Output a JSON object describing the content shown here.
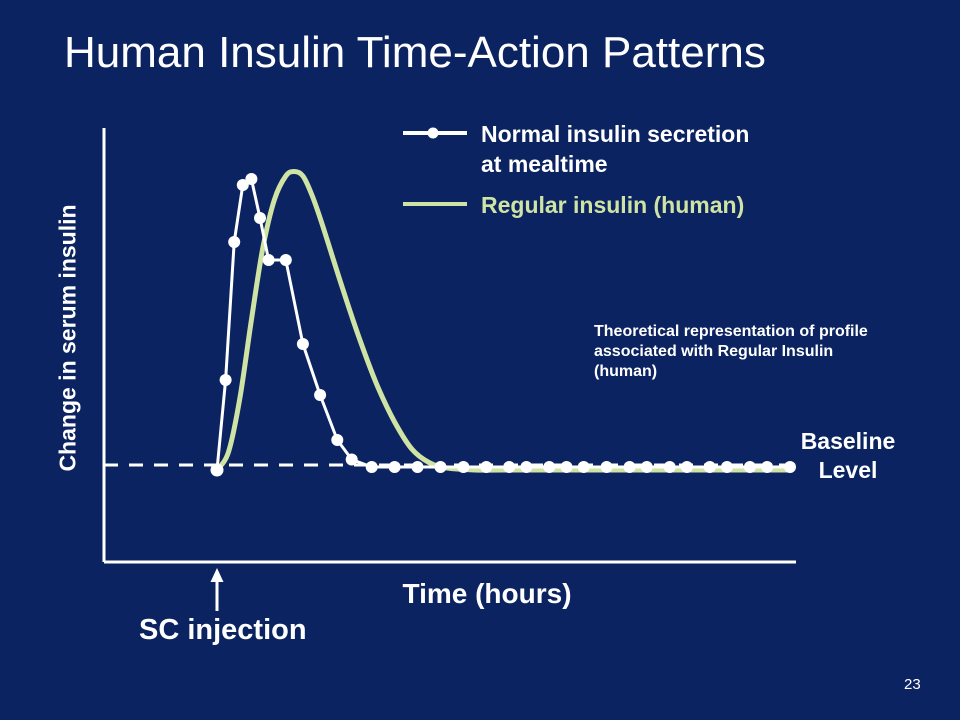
{
  "slide": {
    "title": "Human Insulin Time-Action Patterns",
    "page_number": "23"
  },
  "colors": {
    "background": "#0b2461",
    "normal_secretion": "#ffffff",
    "regular_insulin": "#cfe3a4",
    "text": "#ffffff"
  },
  "chart_data": {
    "type": "line",
    "title": "Human Insulin Time-Action Patterns",
    "xlabel": "Time (hours)",
    "ylabel": "Change in serum insulin",
    "x_tick_labels": [],
    "y_tick_labels": [],
    "xlim": [
      0,
      100
    ],
    "ylim": [
      0,
      100
    ],
    "grid": false,
    "legend_position": "top-right",
    "series": [
      {
        "name": "Normal insulin secretion at mealtime",
        "legend_lines": [
          "Normal insulin secretion",
          "at mealtime"
        ],
        "style": "line-with-markers",
        "color": "#ffffff",
        "x": [
          0,
          1.5,
          3,
          4.5,
          6,
          7.5,
          9,
          12,
          15,
          18,
          21,
          23.5,
          27,
          31,
          35,
          39,
          43,
          47,
          51,
          54,
          58,
          61,
          64,
          68,
          72,
          75,
          79,
          82,
          86,
          89,
          93,
          96,
          100
        ],
        "y": [
          0,
          30,
          76,
          95,
          97,
          84,
          70,
          70,
          42,
          25,
          10,
          3.5,
          1,
          1,
          1,
          1,
          1,
          1,
          1,
          1,
          1,
          1,
          1,
          1,
          1,
          1,
          1,
          1,
          1,
          1,
          1,
          1,
          1
        ]
      },
      {
        "name": "Regular insulin (human)",
        "style": "smooth-line",
        "color": "#cfe3a4",
        "x": [
          0,
          2,
          4,
          6,
          8,
          10,
          12,
          13.5,
          15,
          16.5,
          18,
          20,
          22,
          25,
          28,
          31,
          34,
          37,
          40,
          45,
          50,
          60,
          70,
          80,
          90,
          100
        ],
        "y": [
          0,
          6,
          24,
          50,
          74,
          90,
          98,
          99.5,
          98,
          92,
          84,
          72,
          60,
          43,
          28,
          16,
          7,
          2.5,
          0.7,
          0,
          0,
          0,
          0,
          0,
          0,
          0
        ]
      }
    ],
    "baseline": {
      "style": "dashed",
      "label_lines": [
        "Baseline",
        "Level"
      ]
    },
    "annotations": [
      "Theoretical representation of profile associated with Regular Insulin (human)"
    ],
    "injection_marker": {
      "label": "SC injection",
      "x": 0
    }
  }
}
